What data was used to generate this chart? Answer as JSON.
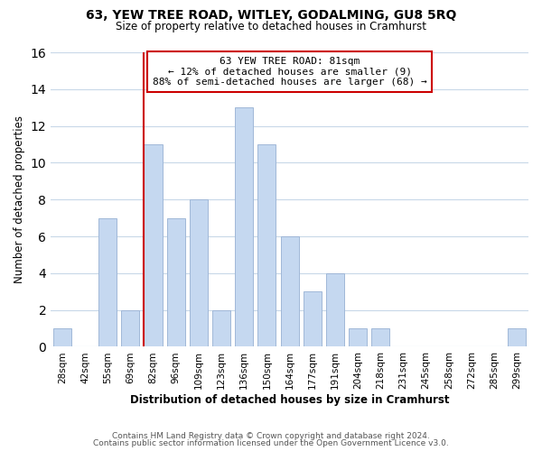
{
  "title": "63, YEW TREE ROAD, WITLEY, GODALMING, GU8 5RQ",
  "subtitle": "Size of property relative to detached houses in Cramhurst",
  "xlabel": "Distribution of detached houses by size in Cramhurst",
  "ylabel": "Number of detached properties",
  "bar_labels": [
    "28sqm",
    "42sqm",
    "55sqm",
    "69sqm",
    "82sqm",
    "96sqm",
    "109sqm",
    "123sqm",
    "136sqm",
    "150sqm",
    "164sqm",
    "177sqm",
    "191sqm",
    "204sqm",
    "218sqm",
    "231sqm",
    "245sqm",
    "258sqm",
    "272sqm",
    "285sqm",
    "299sqm"
  ],
  "bar_values": [
    1,
    0,
    7,
    2,
    11,
    7,
    8,
    2,
    13,
    11,
    6,
    3,
    4,
    1,
    1,
    0,
    0,
    0,
    0,
    0,
    1
  ],
  "bar_color": "#c5d8f0",
  "bar_edge_color": "#a0b8d8",
  "vline_x_index": 4,
  "vline_color": "#cc0000",
  "annotation_line1": "63 YEW TREE ROAD: 81sqm",
  "annotation_line2": "← 12% of detached houses are smaller (9)",
  "annotation_line3": "88% of semi-detached houses are larger (68) →",
  "annotation_box_edge_color": "#cc0000",
  "annotation_box_face_color": "#ffffff",
  "ylim": [
    0,
    16
  ],
  "yticks": [
    0,
    2,
    4,
    6,
    8,
    10,
    12,
    14,
    16
  ],
  "background_color": "#ffffff",
  "grid_color": "#c8d8e8",
  "footer_line1": "Contains HM Land Registry data © Crown copyright and database right 2024.",
  "footer_line2": "Contains public sector information licensed under the Open Government Licence v3.0."
}
